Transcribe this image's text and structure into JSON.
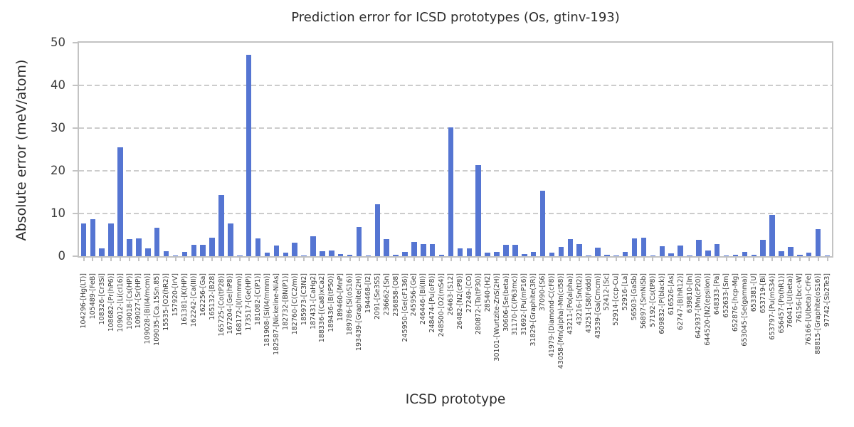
{
  "figure": {
    "title": "Prediction error for ICSD prototypes (Os, gtinv-193)",
    "xlabel": "ICSD prototype",
    "ylabel": "Absolute error (meV/atom)"
  },
  "colors": {
    "bar": "#5575d2",
    "grid": "#cccccc",
    "spine": "#c3c3c3",
    "text": "#2d2d2d",
    "tick_text": "#3c3c3c",
    "background": "#ffffff"
  },
  "chart_data": {
    "type": "bar",
    "title": "Prediction error for ICSD prototypes (Os, gtinv-193)",
    "xlabel": "ICSD prototype",
    "ylabel": "Absolute error (meV/atom)",
    "ylim": [
      0,
      50
    ],
    "yticks": [
      0,
      10,
      20,
      30,
      40,
      50
    ],
    "grid": "horizontal-dashed",
    "legend": "none",
    "categories": [
      "104296-[Hg(LT)]",
      "105489-[FeB]",
      "108326-[Cr3Si]",
      "108682-[Pr(hP6)]",
      "109012-[Li(cI16)]",
      "109018-[Cs(HP)]",
      "109027-[Sr(HP)]",
      "109028-[Bi(I4/mcm)]",
      "109035-[Ca.15Sn.85]",
      "15535-[O2(hR2)]",
      "157920-[IrV]",
      "161381-[K(HP)]",
      "162242-[Ca(III)]",
      "162256-[Ga]",
      "165132-[B28]",
      "165725-[Co(tP28)]",
      "167204-[Ge(hP8)]",
      "168172-[I(Immm)]",
      "173517-[Ge(HP)]",
      "181082-[C(P1)]",
      "181908-[Si(I4/mmm)]",
      "182587-[Nickeline-NiAs]",
      "182732-[BN(P1)]",
      "182760-[C(C2/m)]",
      "185973-[C3N2]",
      "187431-[CaHg2]",
      "188336-[(Ca8)xCa2]",
      "189436-[B(tP50)]",
      "189460-[MnP]",
      "189786-[Si(oS16)]",
      "193439-[Graphite(2H)]",
      "194468-[I2]",
      "2091-[Se3S5]",
      "236662-[Sn]",
      "236858-[O8]",
      "245950-[Ge(cF136)]",
      "245956-[Ge]",
      "246446-[Bi(III)]",
      "248474-[Pu(oF8)]",
      "248500-[O2(mS4)]",
      "26463-[S12]",
      "26482-[N2(cP8)]",
      "27249-[CO]",
      "280872-[Ta(tP30)]",
      "28540-[H2]",
      "30101-[Wurtzite-ZnS(2H)]",
      "30606-[Se(beta)]",
      "31170-[C(P63mc)]",
      "31692-[Pu(mP16)]",
      "31829-[Graphite(3R)]",
      "37090-[S6]",
      "41979-[Diamond-C(cF8)]",
      "43058-[Mn(alpha)-Mn(cI58)]",
      "43211-[Po(alpha)]",
      "43216-[Sn(tI2)]",
      "43251-[S8(Fddd)]",
      "43539-[Ga(Cmcm)]",
      "52412-[Sc]",
      "52914-[ccp-Cu]",
      "52916-[La]",
      "56503-[GaSb]",
      "56897-[SmNiSb]",
      "57192-[Cs(tP8)]",
      "609832-[P(black)]",
      "616526-[As]",
      "62747-[B(hR12)]",
      "639810-[In]",
      "642937-[Mn(cP20)]",
      "644520-[N2(epsilon)]",
      "648333-[Pa]",
      "652633-[Sm]",
      "652876-[hcp-Mg]",
      "653045-[Se(gamma)]",
      "653381-[U]",
      "653719-[Bi]",
      "653797-[Pu(mS34)]",
      "656457-[Po(hR1)]",
      "76041-[U(beta)]",
      "76156-[bcc-W]",
      "76166-[U(beta)-CrFe]",
      "88815-[Graphite(oS16)]",
      "97742-[Sb2Te3]"
    ],
    "values": [
      7.6,
      8.6,
      1.9,
      7.6,
      25.5,
      4.0,
      4.2,
      1.9,
      6.7,
      1.1,
      0.1,
      1.0,
      2.6,
      2.6,
      4.4,
      14.4,
      7.6,
      0.1,
      47.2,
      4.2,
      0.8,
      2.5,
      0.8,
      3.2,
      0.1,
      4.7,
      1.1,
      1.3,
      0.5,
      0.4,
      6.8,
      0.1,
      12.1,
      4.0,
      0.3,
      1.0,
      3.3,
      2.8,
      2.8,
      0.3,
      30.1,
      1.8,
      1.9,
      21.3,
      0.8,
      1.0,
      2.6,
      2.6,
      0.5,
      1.0,
      15.4,
      0.9,
      2.1,
      4.0,
      2.8,
      0.2,
      2.0,
      0.3,
      0.1,
      1.0,
      4.1,
      4.4,
      0.1,
      2.3,
      0.6,
      2.5,
      0.1,
      3.9,
      1.4,
      2.8,
      0.1,
      0.3,
      1.0,
      0.3,
      3.8,
      9.7,
      1.1,
      2.1,
      0.3,
      0.9,
      6.4,
      0.2
    ]
  }
}
